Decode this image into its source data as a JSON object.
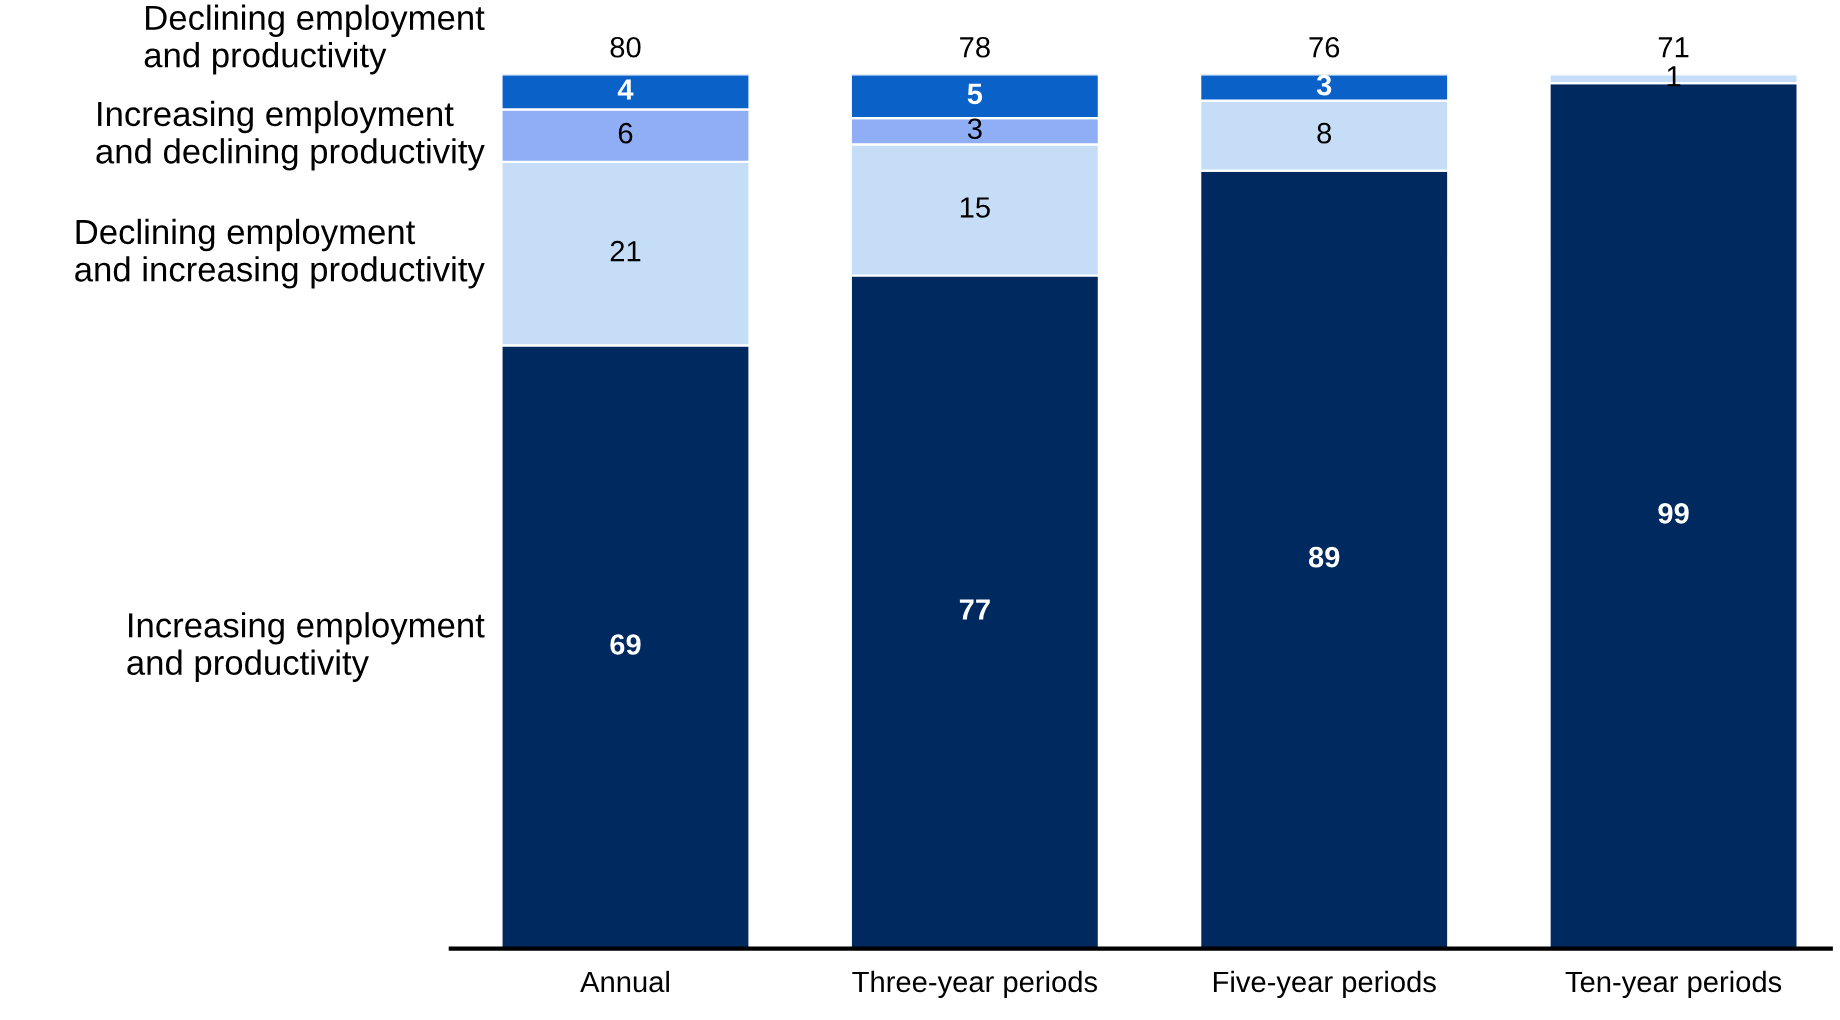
{
  "chart_data": {
    "type": "bar",
    "stacked": true,
    "categories": [
      "Annual",
      "Three-year periods",
      "Five-year periods",
      "Ten-year periods"
    ],
    "series": [
      {
        "name": "Increasing employment and productivity",
        "color": "#002960",
        "values": [
          69,
          77,
          89,
          99
        ],
        "value_labels": [
          "69",
          "77",
          "89",
          "99"
        ]
      },
      {
        "name": "Declining employment and increasing productivity",
        "color": "#c6ddf7",
        "values": [
          21,
          15,
          8,
          1
        ],
        "value_labels": [
          "21",
          "15",
          "8",
          "1"
        ]
      },
      {
        "name": "Increasing employment and declining productivity",
        "color": "#8faef5",
        "values": [
          6,
          3,
          0,
          0
        ],
        "value_labels": [
          "6",
          "3",
          null,
          null
        ]
      },
      {
        "name": "Declining employment and productivity",
        "color": "#0a62c9",
        "values": [
          4,
          5,
          3,
          0
        ],
        "value_labels": [
          "4",
          "5",
          "3",
          null
        ]
      }
    ],
    "annotations": [
      {
        "text": "80",
        "x": "Annual",
        "y": 100
      },
      {
        "text": "78",
        "x": "Three-year periods",
        "y": 100
      },
      {
        "text": "76",
        "x": "Five-year periods",
        "y": 100
      },
      {
        "text": "71",
        "x": "Ten-year periods",
        "y": 100
      }
    ]
  }
}
